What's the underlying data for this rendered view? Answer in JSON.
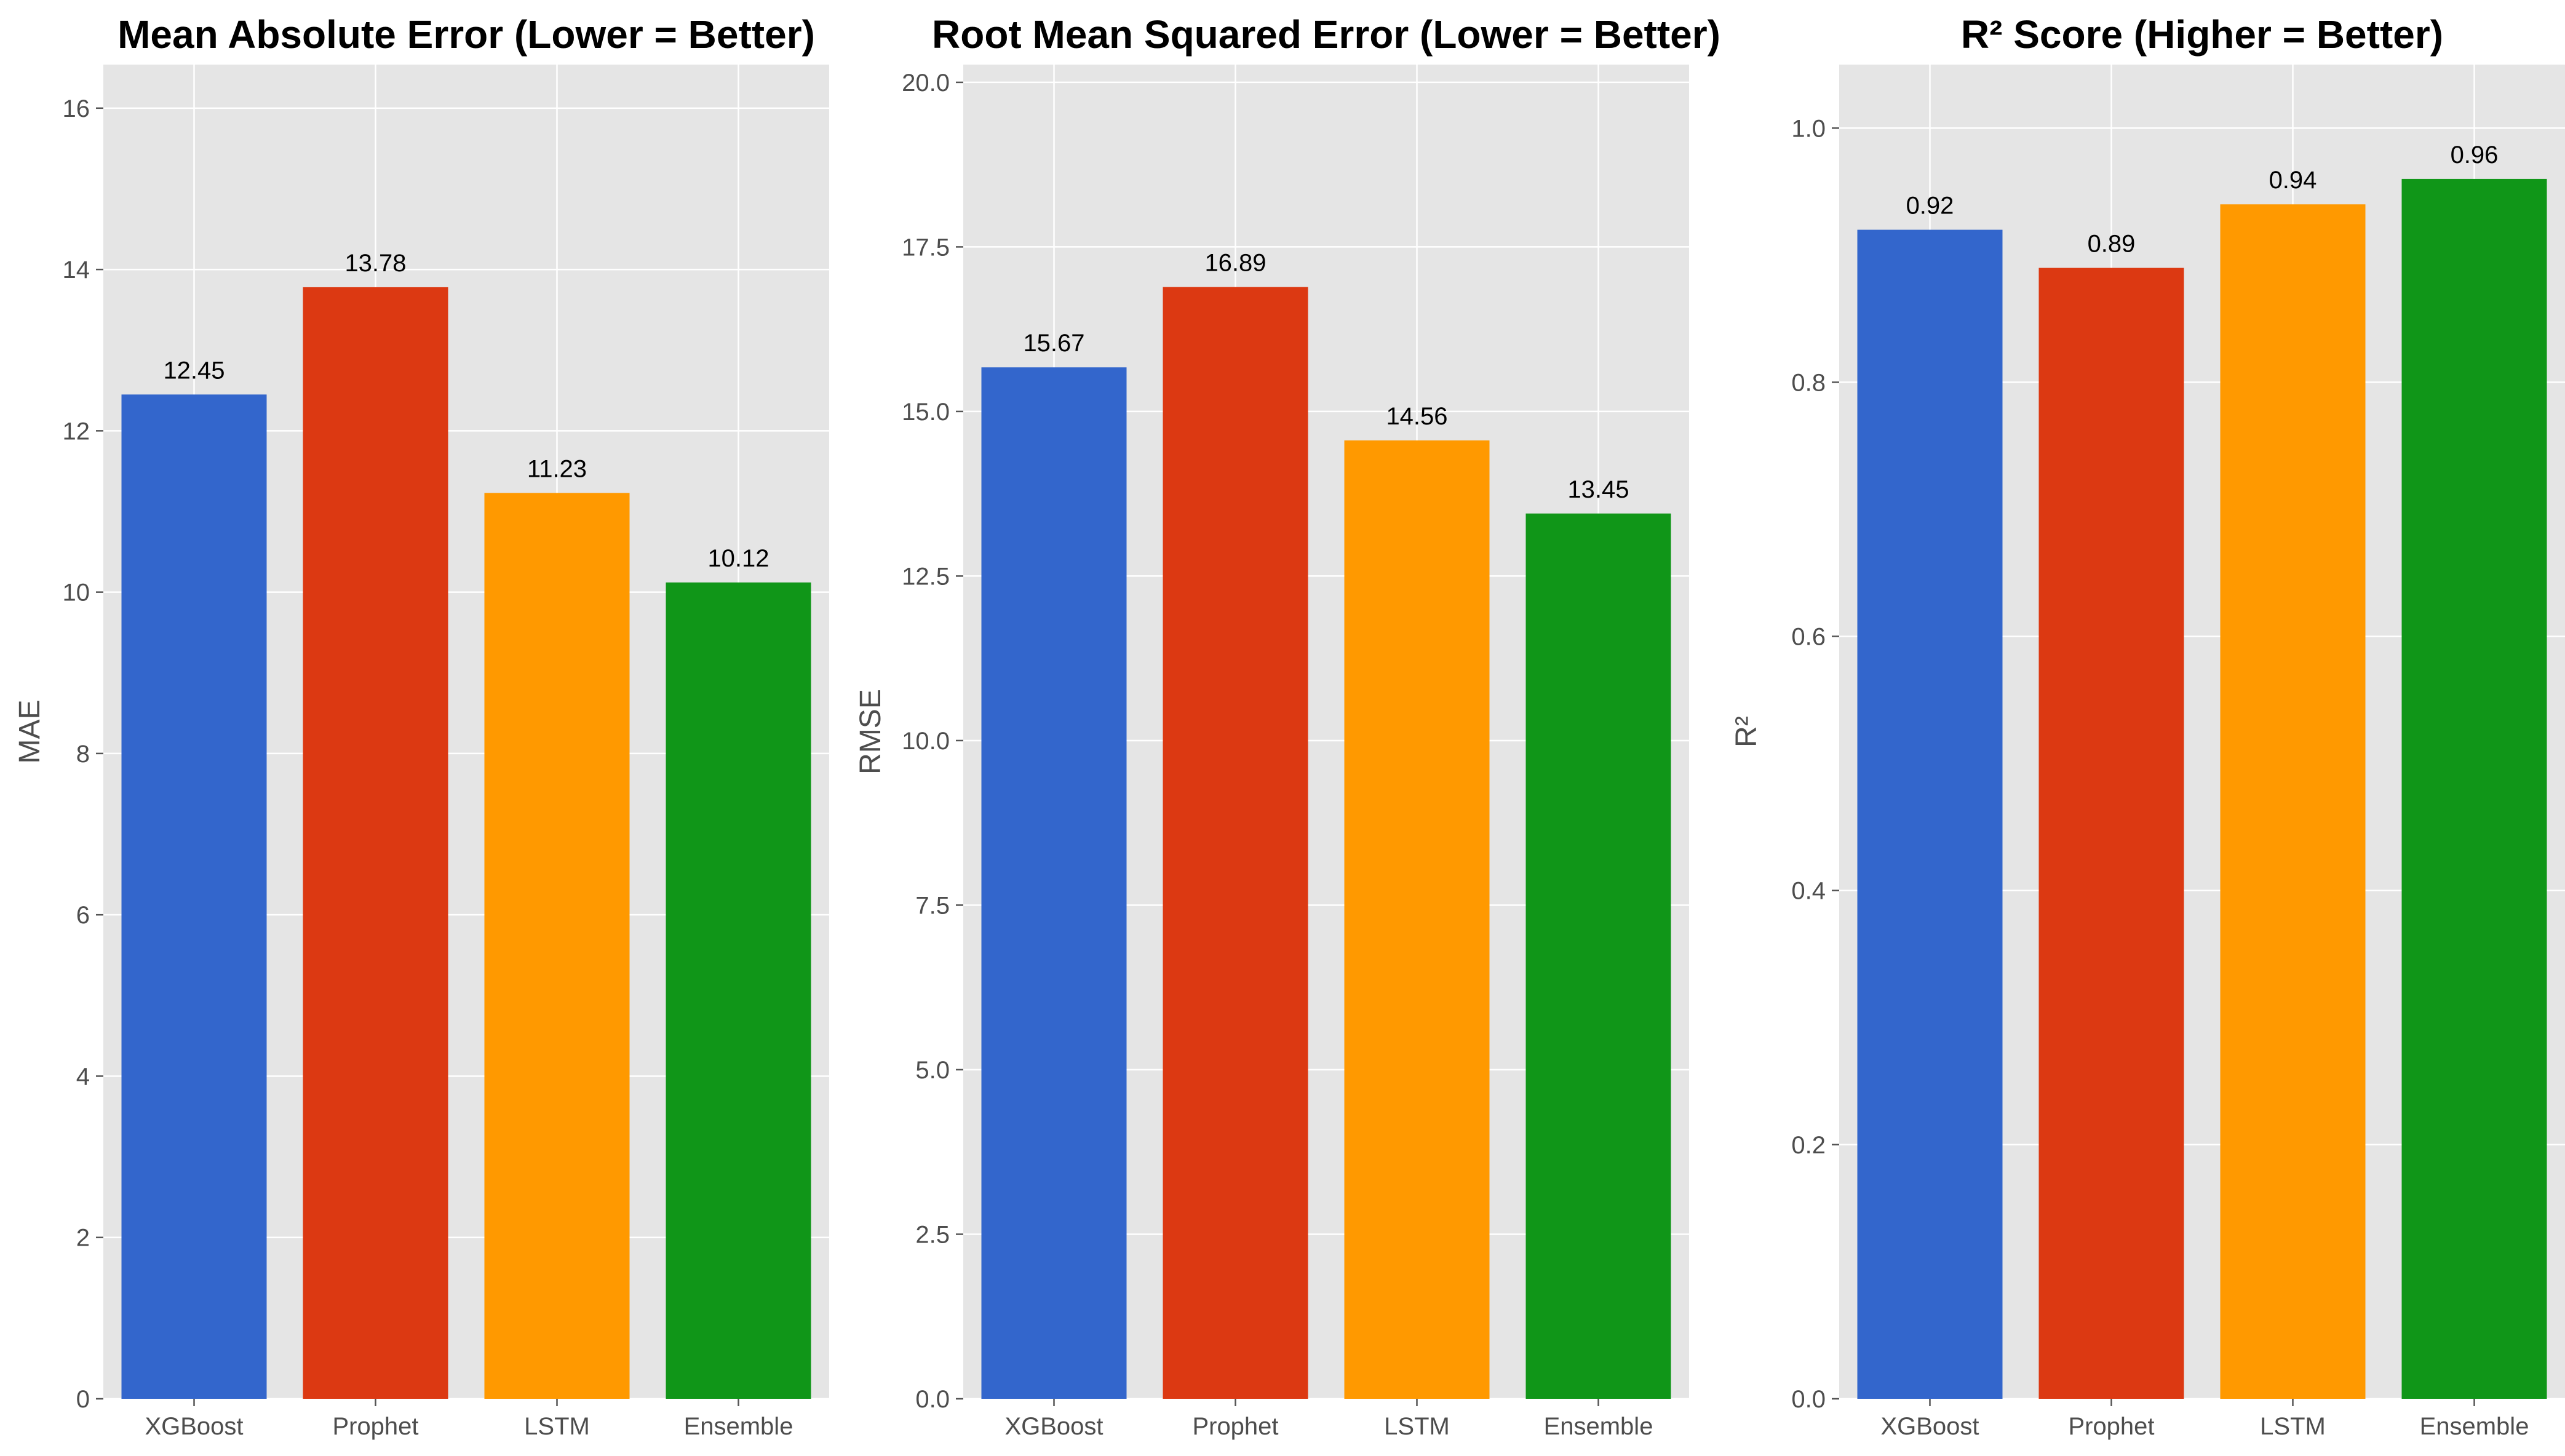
{
  "chart_data": [
    {
      "type": "bar",
      "title": "Mean Absolute Error (Lower = Better)",
      "xlabel": "",
      "ylabel": "MAE",
      "categories": [
        "XGBoost",
        "Prophet",
        "LSTM",
        "Ensemble"
      ],
      "values": [
        12.45,
        13.78,
        11.23,
        10.12
      ],
      "value_labels": [
        "12.45",
        "13.78",
        "11.23",
        "10.12"
      ],
      "colors": [
        "#3366cc",
        "#dc3912",
        "#ff9900",
        "#109618"
      ],
      "ylim": [
        0,
        16.54
      ],
      "yticks": [
        0,
        2,
        4,
        6,
        8,
        10,
        12,
        14,
        16
      ],
      "ytick_labels": [
        "0",
        "2",
        "4",
        "6",
        "8",
        "10",
        "12",
        "14",
        "16"
      ],
      "grid": true
    },
    {
      "type": "bar",
      "title": "Root Mean Squared Error (Lower = Better)",
      "xlabel": "",
      "ylabel": "RMSE",
      "categories": [
        "XGBoost",
        "Prophet",
        "LSTM",
        "Ensemble"
      ],
      "values": [
        15.67,
        16.89,
        14.56,
        13.45
      ],
      "value_labels": [
        "15.67",
        "16.89",
        "14.56",
        "13.45"
      ],
      "colors": [
        "#3366cc",
        "#dc3912",
        "#ff9900",
        "#109618"
      ],
      "ylim": [
        0,
        20.27
      ],
      "yticks": [
        0,
        2.5,
        5,
        7.5,
        10,
        12.5,
        15,
        17.5,
        20
      ],
      "ytick_labels": [
        "0.0",
        "2.5",
        "5.0",
        "7.5",
        "10.0",
        "12.5",
        "15.0",
        "17.5",
        "20.0"
      ],
      "grid": true
    },
    {
      "type": "bar",
      "title": "R² Score (Higher = Better)",
      "xlabel": "",
      "ylabel": "R²",
      "categories": [
        "XGBoost",
        "Prophet",
        "LSTM",
        "Ensemble"
      ],
      "values": [
        0.92,
        0.89,
        0.94,
        0.96
      ],
      "value_labels": [
        "0.92",
        "0.89",
        "0.94",
        "0.96"
      ],
      "colors": [
        "#3366cc",
        "#dc3912",
        "#ff9900",
        "#109618"
      ],
      "ylim": [
        0,
        1.05
      ],
      "yticks": [
        0,
        0.2,
        0.4,
        0.6,
        0.8,
        1.0
      ],
      "ytick_labels": [
        "0.0",
        "0.2",
        "0.4",
        "0.6",
        "0.8",
        "1.0"
      ],
      "grid": true
    }
  ]
}
